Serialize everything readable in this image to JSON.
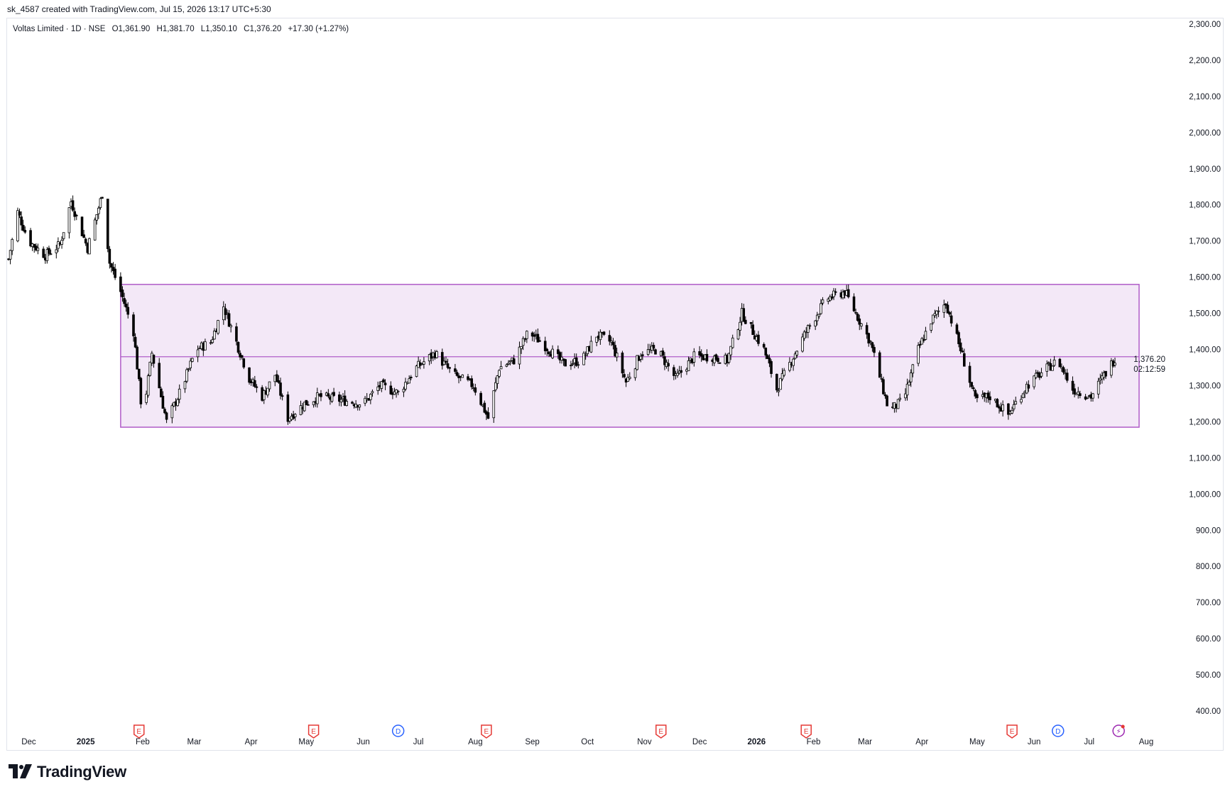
{
  "header": {
    "text": "sk_4587 created with TradingView.com, Jul 15, 2026 13:17 UTC+5:30"
  },
  "legend": {
    "symbol": "Voltas Limited · 1D · NSE",
    "open": "O1,361.90",
    "high": "H1,381.70",
    "low": "L1,350.10",
    "close": "C1,376.20",
    "change": "+17.30 (+1.27%)"
  },
  "price_label": {
    "value": "1,376.20",
    "countdown": "02:12:59"
  },
  "brand": {
    "name": "TradingView"
  },
  "colors": {
    "candle": "#000000",
    "box_fill": "#f3e8f7",
    "box_border": "#b05cc8",
    "earnings": "#e53935",
    "dividend": "#2962ff",
    "split": "#9c27b0"
  },
  "chart_data": {
    "type": "candlestick",
    "symbol": "Voltas Limited",
    "interval": "1D",
    "exchange": "NSE",
    "ylim": [
      400,
      2300
    ],
    "y_ticks": [
      "2,300.00",
      "2,200.00",
      "2,100.00",
      "2,000.00",
      "1,900.00",
      "1,800.00",
      "1,700.00",
      "1,600.00",
      "1,500.00",
      "1,400.00",
      "1,300.00",
      "1,200.00",
      "1,100.00",
      "1,000.00",
      "900.00",
      "800.00",
      "700.00",
      "600.00",
      "500.00",
      "400.00"
    ],
    "x_ticks": [
      "Dec",
      "2025",
      "Feb",
      "Mar",
      "Apr",
      "May",
      "Jun",
      "Jul",
      "Aug",
      "Sep",
      "Oct",
      "Nov",
      "Dec",
      "2026",
      "Feb",
      "Mar",
      "Apr",
      "May",
      "Jun",
      "Jul",
      "Aug"
    ],
    "x_start": "2024-11-20",
    "last_close": 1376.2,
    "range_box": {
      "top": 1580,
      "bottom": 1185,
      "mid": 1380
    },
    "close_path": [
      [
        "2024-11-20",
        1650
      ],
      [
        "2024-11-25",
        1780
      ],
      [
        "2024-12-01",
        1700
      ],
      [
        "2024-12-10",
        1660
      ],
      [
        "2024-12-18",
        1690
      ],
      [
        "2024-12-24",
        1810
      ],
      [
        "2025-01-02",
        1680
      ],
      [
        "2025-01-10",
        1830
      ],
      [
        "2025-01-14",
        1640
      ],
      [
        "2025-01-20",
        1560
      ],
      [
        "2025-01-27",
        1450
      ],
      [
        "2025-02-01",
        1210
      ],
      [
        "2025-02-06",
        1390
      ],
      [
        "2025-02-14",
        1200
      ],
      [
        "2025-02-22",
        1290
      ],
      [
        "2025-03-02",
        1400
      ],
      [
        "2025-03-10",
        1420
      ],
      [
        "2025-03-17",
        1520
      ],
      [
        "2025-03-24",
        1420
      ],
      [
        "2025-03-31",
        1320
      ],
      [
        "2025-04-07",
        1270
      ],
      [
        "2025-04-14",
        1330
      ],
      [
        "2025-04-21",
        1210
      ],
      [
        "2025-04-30",
        1250
      ],
      [
        "2025-05-08",
        1270
      ],
      [
        "2025-05-20",
        1260
      ],
      [
        "2025-06-01",
        1250
      ],
      [
        "2025-06-10",
        1300
      ],
      [
        "2025-06-20",
        1280
      ],
      [
        "2025-06-30",
        1350
      ],
      [
        "2025-07-10",
        1390
      ],
      [
        "2025-07-20",
        1330
      ],
      [
        "2025-07-31",
        1300
      ],
      [
        "2025-08-08",
        1210
      ],
      [
        "2025-08-14",
        1350
      ],
      [
        "2025-08-22",
        1370
      ],
      [
        "2025-08-30",
        1450
      ],
      [
        "2025-09-08",
        1410
      ],
      [
        "2025-09-18",
        1360
      ],
      [
        "2025-09-28",
        1370
      ],
      [
        "2025-10-06",
        1440
      ],
      [
        "2025-10-14",
        1420
      ],
      [
        "2025-10-22",
        1310
      ],
      [
        "2025-10-30",
        1390
      ],
      [
        "2025-11-08",
        1400
      ],
      [
        "2025-11-18",
        1320
      ],
      [
        "2025-11-28",
        1380
      ],
      [
        "2025-12-08",
        1380
      ],
      [
        "2025-12-16",
        1370
      ],
      [
        "2025-12-24",
        1500
      ],
      [
        "2026-01-05",
        1400
      ],
      [
        "2026-01-12",
        1290
      ],
      [
        "2026-01-20",
        1370
      ],
      [
        "2026-01-28",
        1450
      ],
      [
        "2026-02-08",
        1540
      ],
      [
        "2026-02-18",
        1560
      ],
      [
        "2026-02-24",
        1500
      ],
      [
        "2026-03-04",
        1420
      ],
      [
        "2026-03-14",
        1230
      ],
      [
        "2026-03-22",
        1260
      ],
      [
        "2026-03-30",
        1400
      ],
      [
        "2026-04-06",
        1480
      ],
      [
        "2026-04-14",
        1530
      ],
      [
        "2026-04-22",
        1400
      ],
      [
        "2026-04-30",
        1260
      ],
      [
        "2026-05-08",
        1270
      ],
      [
        "2026-05-18",
        1220
      ],
      [
        "2026-05-28",
        1300
      ],
      [
        "2026-06-06",
        1340
      ],
      [
        "2026-06-14",
        1370
      ],
      [
        "2026-06-22",
        1290
      ],
      [
        "2026-07-02",
        1270
      ],
      [
        "2026-07-08",
        1320
      ],
      [
        "2026-07-15",
        1376.2
      ]
    ],
    "events": [
      {
        "type": "E",
        "label": "E",
        "date": "2025-01-30"
      },
      {
        "type": "E",
        "label": "E",
        "date": "2025-05-05"
      },
      {
        "type": "D",
        "label": "D",
        "date": "2025-06-20"
      },
      {
        "type": "E",
        "label": "E",
        "date": "2025-08-07"
      },
      {
        "type": "E",
        "label": "E",
        "date": "2025-11-10"
      },
      {
        "type": "E",
        "label": "E",
        "date": "2026-01-28"
      },
      {
        "type": "E",
        "label": "E",
        "date": "2026-05-20"
      },
      {
        "type": "D",
        "label": "D",
        "date": "2026-06-14"
      },
      {
        "type": "S",
        "label": "⚡",
        "date": "2026-07-17"
      }
    ]
  }
}
